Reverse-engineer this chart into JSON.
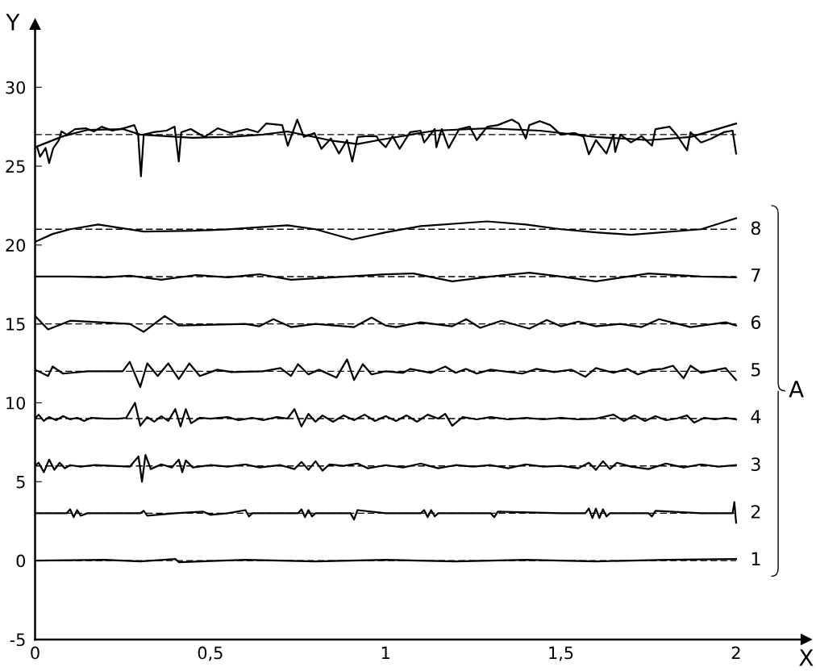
{
  "chart_data": {
    "type": "line",
    "xlabel": "X",
    "ylabel": "Y",
    "xlim": [
      0,
      2.2
    ],
    "ylim": [
      -5,
      34
    ],
    "xticks": [
      0,
      {
        "value": 0.5,
        "label": "0,5"
      },
      1,
      {
        "value": 1.5,
        "label": "1,5"
      },
      2
    ],
    "yticks": [
      -5,
      0,
      5,
      10,
      15,
      20,
      25,
      30
    ],
    "grid": false,
    "legend": false,
    "marker": "none",
    "line_style": "solid",
    "annotations": [
      "A"
    ],
    "ref_lines": [
      {
        "axis": "y",
        "value": 27,
        "color": "#000000",
        "line_style": "dashed"
      },
      {
        "axis": "y",
        "value": 21,
        "color": "#000000",
        "line_style": "dashed"
      },
      {
        "axis": "y",
        "value": 18,
        "color": "#000000",
        "line_style": "dashed"
      },
      {
        "axis": "y",
        "value": 15,
        "color": "#000000",
        "line_style": "dashed"
      },
      {
        "axis": "y",
        "value": 12,
        "color": "#000000",
        "line_style": "dashed"
      },
      {
        "axis": "y",
        "value": 9,
        "color": "#000000",
        "line_style": "dashed"
      },
      {
        "axis": "y",
        "value": 6,
        "color": "#000000",
        "line_style": "dashed"
      },
      {
        "axis": "y",
        "value": 3,
        "color": "#000000",
        "line_style": "dashed"
      },
      {
        "axis": "y",
        "value": 0,
        "color": "#000000",
        "line_style": "dashed"
      }
    ],
    "series": [
      {
        "color": "#000000",
        "x": [
          0.006,
          0.014,
          0.03,
          0.04,
          0.052,
          0.068,
          0.075,
          0.091,
          0.114,
          0.145,
          0.168,
          0.19,
          0.22,
          0.252,
          0.283,
          0.294,
          0.302,
          0.31,
          0.337,
          0.375,
          0.398,
          0.41,
          0.417,
          0.444,
          0.483,
          0.521,
          0.559,
          0.605,
          0.636,
          0.659,
          0.705,
          0.721,
          0.748,
          0.767,
          0.797,
          0.817,
          0.844,
          0.867,
          0.89,
          0.905,
          0.92,
          0.943,
          0.974,
          0.98,
          1.0,
          1.02,
          1.04,
          1.07,
          1.1,
          1.11,
          1.14,
          1.145,
          1.16,
          1.18,
          1.21,
          1.24,
          1.26,
          1.29,
          1.32,
          1.36,
          1.38,
          1.4,
          1.41,
          1.44,
          1.47,
          1.5,
          1.54,
          1.565,
          1.58,
          1.6,
          1.63,
          1.65,
          1.655,
          1.67,
          1.7,
          1.73,
          1.76,
          1.77,
          1.81,
          1.83,
          1.86,
          1.87,
          1.9,
          1.93,
          1.965,
          1.99,
          2.0
        ],
        "values": [
          26.2,
          25.6,
          26.15,
          25.2,
          26.15,
          26.65,
          27.2,
          27.0,
          27.35,
          27.4,
          27.2,
          27.5,
          27.25,
          27.4,
          27.6,
          27.0,
          24.35,
          27.0,
          27.15,
          27.25,
          27.5,
          25.3,
          27.15,
          27.35,
          26.85,
          27.4,
          27.1,
          27.35,
          27.15,
          27.7,
          27.6,
          26.3,
          27.95,
          26.85,
          27.1,
          26.1,
          26.75,
          25.8,
          26.65,
          25.3,
          26.85,
          26.9,
          26.9,
          26.65,
          26.2,
          26.9,
          26.1,
          27.15,
          27.25,
          26.5,
          27.35,
          26.2,
          27.35,
          26.15,
          27.35,
          27.5,
          26.65,
          27.5,
          27.6,
          27.95,
          27.7,
          26.75,
          27.6,
          27.85,
          27.6,
          27.0,
          27.1,
          26.85,
          25.75,
          26.65,
          25.8,
          27.0,
          25.9,
          27.0,
          26.5,
          26.9,
          26.3,
          27.35,
          27.5,
          27.0,
          26.0,
          27.15,
          26.5,
          26.75,
          27.15,
          27.25,
          25.8
        ]
      },
      {
        "color": "#000000",
        "x": [
          0,
          0.08,
          0.15,
          0.25,
          0.3,
          0.45,
          0.55,
          0.65,
          0.72,
          0.85,
          0.92,
          0.98,
          1.14,
          1.29,
          1.44,
          1.6,
          1.75,
          1.87,
          2.0
        ],
        "values": [
          26.2,
          26.9,
          27.3,
          27.35,
          27.0,
          26.8,
          26.85,
          27.0,
          27.2,
          26.6,
          26.4,
          26.65,
          27.25,
          27.4,
          27.25,
          26.85,
          26.65,
          26.85,
          27.7
        ]
      },
      {
        "name": "8",
        "color": "#000000",
        "x": [
          0,
          0.05,
          0.1,
          0.18,
          0.31,
          0.45,
          0.55,
          0.72,
          0.8,
          0.905,
          1.0,
          1.1,
          1.29,
          1.4,
          1.5,
          1.6,
          1.7,
          1.9,
          2.0
        ],
        "values": [
          20.2,
          20.7,
          21.0,
          21.3,
          20.85,
          20.9,
          21.0,
          21.25,
          21.0,
          20.35,
          20.8,
          21.2,
          21.5,
          21.3,
          21.0,
          20.8,
          20.65,
          21.0,
          21.7
        ]
      },
      {
        "name": "7",
        "color": "#000000",
        "x": [
          0,
          0.1,
          0.2,
          0.27,
          0.36,
          0.46,
          0.55,
          0.64,
          0.73,
          0.85,
          1.0,
          1.08,
          1.19,
          1.3,
          1.41,
          1.5,
          1.6,
          1.75,
          1.9,
          2.0
        ],
        "values": [
          18.0,
          18.0,
          17.95,
          18.05,
          17.8,
          18.1,
          17.95,
          18.15,
          17.8,
          17.95,
          18.15,
          18.2,
          17.7,
          18.0,
          18.25,
          18.0,
          17.7,
          18.2,
          18.0,
          17.95
        ]
      },
      {
        "name": "6",
        "color": "#000000",
        "x": [
          0,
          0.037,
          0.1,
          0.27,
          0.31,
          0.37,
          0.41,
          0.6,
          0.64,
          0.68,
          0.73,
          0.8,
          0.91,
          0.96,
          1.0,
          1.03,
          1.1,
          1.19,
          1.23,
          1.27,
          1.33,
          1.41,
          1.46,
          1.5,
          1.55,
          1.6,
          1.67,
          1.73,
          1.78,
          1.87,
          1.97,
          2.0
        ],
        "values": [
          15.5,
          14.65,
          15.2,
          15.0,
          14.5,
          15.5,
          14.9,
          15.0,
          14.85,
          15.3,
          14.8,
          15.0,
          14.8,
          15.4,
          14.9,
          14.8,
          15.1,
          14.85,
          15.3,
          14.75,
          15.2,
          14.7,
          15.25,
          14.85,
          15.15,
          14.85,
          15.0,
          14.8,
          15.3,
          14.8,
          15.1,
          14.9
        ]
      },
      {
        "name": "5",
        "color": "#000000",
        "x": [
          0,
          0.037,
          0.05,
          0.08,
          0.15,
          0.25,
          0.27,
          0.3,
          0.32,
          0.35,
          0.38,
          0.41,
          0.44,
          0.47,
          0.52,
          0.56,
          0.65,
          0.7,
          0.73,
          0.75,
          0.78,
          0.81,
          0.86,
          0.89,
          0.91,
          0.935,
          0.96,
          1.0,
          1.05,
          1.07,
          1.13,
          1.17,
          1.2,
          1.23,
          1.26,
          1.3,
          1.39,
          1.43,
          1.48,
          1.53,
          1.57,
          1.6,
          1.65,
          1.69,
          1.72,
          1.76,
          1.79,
          1.82,
          1.85,
          1.87,
          1.9,
          1.97,
          2.0
        ],
        "values": [
          12.1,
          11.7,
          12.3,
          11.85,
          12.0,
          12.0,
          12.6,
          11.0,
          12.5,
          11.7,
          12.5,
          11.5,
          12.5,
          11.7,
          12.1,
          11.95,
          12.0,
          12.2,
          11.7,
          12.45,
          11.8,
          12.1,
          11.6,
          12.75,
          11.45,
          12.45,
          11.8,
          12.0,
          11.9,
          12.15,
          11.9,
          12.3,
          11.9,
          12.15,
          11.85,
          12.1,
          11.85,
          12.15,
          11.95,
          12.1,
          11.65,
          12.2,
          11.9,
          12.15,
          11.8,
          12.1,
          12.15,
          12.35,
          11.55,
          12.35,
          11.9,
          12.2,
          11.45
        ]
      },
      {
        "name": "4",
        "color": "#000000",
        "x": [
          0,
          0.01,
          0.025,
          0.04,
          0.06,
          0.08,
          0.1,
          0.12,
          0.14,
          0.16,
          0.2,
          0.24,
          0.26,
          0.285,
          0.3,
          0.32,
          0.34,
          0.36,
          0.38,
          0.4,
          0.415,
          0.43,
          0.445,
          0.47,
          0.5,
          0.55,
          0.58,
          0.62,
          0.65,
          0.69,
          0.72,
          0.74,
          0.76,
          0.78,
          0.8,
          0.82,
          0.85,
          0.88,
          0.91,
          0.94,
          0.97,
          1.0,
          1.03,
          1.06,
          1.09,
          1.12,
          1.15,
          1.17,
          1.19,
          1.22,
          1.26,
          1.3,
          1.35,
          1.4,
          1.45,
          1.5,
          1.55,
          1.6,
          1.65,
          1.68,
          1.71,
          1.74,
          1.77,
          1.8,
          1.83,
          1.86,
          1.88,
          1.91,
          1.94,
          1.97,
          2.0
        ],
        "values": [
          9.0,
          9.25,
          8.85,
          9.1,
          8.9,
          9.15,
          8.95,
          9.05,
          8.85,
          9.05,
          9.0,
          9.0,
          9.05,
          10.0,
          8.55,
          9.1,
          8.8,
          9.15,
          8.85,
          9.6,
          8.5,
          9.6,
          8.7,
          9.05,
          9.0,
          9.1,
          8.9,
          9.05,
          8.9,
          9.1,
          9.0,
          9.6,
          8.5,
          9.3,
          8.8,
          9.2,
          8.8,
          9.2,
          8.9,
          9.25,
          8.85,
          9.15,
          8.85,
          9.2,
          8.8,
          9.25,
          9.0,
          9.3,
          8.55,
          9.1,
          8.95,
          9.1,
          8.95,
          9.05,
          8.95,
          9.05,
          8.95,
          9.0,
          9.25,
          8.85,
          9.2,
          8.85,
          9.15,
          8.9,
          9.0,
          9.2,
          8.75,
          9.05,
          8.95,
          9.05,
          8.95
        ]
      },
      {
        "name": "3",
        "color": "#000000",
        "x": [
          0,
          0.01,
          0.025,
          0.04,
          0.055,
          0.07,
          0.085,
          0.1,
          0.13,
          0.17,
          0.22,
          0.27,
          0.295,
          0.305,
          0.315,
          0.33,
          0.36,
          0.39,
          0.41,
          0.42,
          0.43,
          0.45,
          0.5,
          0.55,
          0.6,
          0.64,
          0.7,
          0.74,
          0.76,
          0.78,
          0.8,
          0.82,
          0.84,
          0.88,
          0.92,
          0.95,
          1.0,
          1.05,
          1.1,
          1.15,
          1.2,
          1.25,
          1.3,
          1.35,
          1.4,
          1.45,
          1.5,
          1.55,
          1.58,
          1.6,
          1.62,
          1.64,
          1.66,
          1.7,
          1.75,
          1.8,
          1.85,
          1.9,
          1.95,
          2.0
        ],
        "values": [
          6.0,
          6.2,
          5.6,
          6.4,
          5.75,
          6.2,
          5.85,
          6.05,
          5.95,
          6.05,
          6.0,
          5.95,
          6.6,
          5.0,
          6.7,
          5.8,
          6.1,
          5.9,
          6.4,
          5.6,
          6.35,
          5.9,
          6.05,
          5.95,
          6.1,
          5.9,
          6.05,
          5.8,
          6.25,
          5.75,
          6.3,
          5.7,
          6.1,
          6.0,
          6.15,
          5.85,
          6.05,
          5.9,
          6.15,
          5.85,
          6.05,
          5.95,
          6.05,
          5.85,
          6.1,
          5.95,
          6.0,
          5.85,
          6.2,
          5.75,
          6.3,
          5.8,
          6.2,
          5.95,
          5.8,
          6.15,
          5.9,
          6.1,
          5.95,
          6.05
        ]
      },
      {
        "name": "2",
        "color": "#000000",
        "x": [
          0,
          0.09,
          0.1,
          0.11,
          0.12,
          0.13,
          0.15,
          0.3,
          0.31,
          0.32,
          0.4,
          0.48,
          0.5,
          0.55,
          0.6,
          0.61,
          0.62,
          0.75,
          0.76,
          0.77,
          0.78,
          0.79,
          0.8,
          0.9,
          0.91,
          0.92,
          1.0,
          1.1,
          1.11,
          1.12,
          1.13,
          1.14,
          1.15,
          1.3,
          1.31,
          1.32,
          1.5,
          1.57,
          1.58,
          1.59,
          1.6,
          1.61,
          1.62,
          1.63,
          1.64,
          1.75,
          1.76,
          1.77,
          1.9,
          1.99,
          1.995,
          2.0
        ],
        "values": [
          3.0,
          3.0,
          3.25,
          2.75,
          3.2,
          2.85,
          3.0,
          3.0,
          3.15,
          2.85,
          3.0,
          3.1,
          2.9,
          3.0,
          3.2,
          2.8,
          3.0,
          3.0,
          3.25,
          2.75,
          3.2,
          2.8,
          3.0,
          3.0,
          2.6,
          3.2,
          3.0,
          3.0,
          3.2,
          2.75,
          3.2,
          2.8,
          3.0,
          3.0,
          2.75,
          3.1,
          3.0,
          3.0,
          3.3,
          2.7,
          3.3,
          2.7,
          3.25,
          2.8,
          3.0,
          3.0,
          2.8,
          3.15,
          3.0,
          3.0,
          3.7,
          2.4
        ]
      },
      {
        "name": "1",
        "color": "#000000",
        "x": [
          0,
          0.2,
          0.3,
          0.4,
          0.41,
          0.6,
          0.8,
          1.0,
          1.2,
          1.4,
          1.6,
          1.8,
          2.0
        ],
        "values": [
          0,
          0.05,
          -0.05,
          0.1,
          -0.1,
          0.05,
          -0.05,
          0.05,
          -0.05,
          0.05,
          -0.05,
          0.05,
          0.1
        ]
      }
    ]
  }
}
